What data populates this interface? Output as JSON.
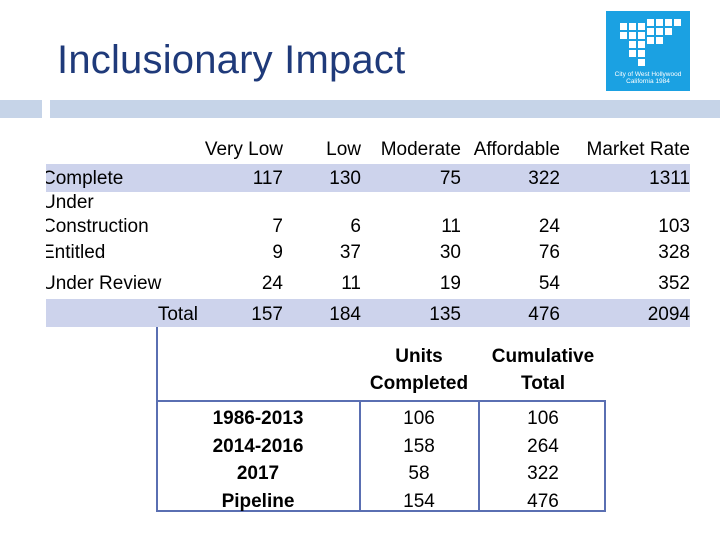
{
  "title": "Inclusionary Impact",
  "logo": {
    "line1": "City of West Hollywood",
    "line2": "California 1984"
  },
  "table1": {
    "headers": [
      "Very Low",
      "Low",
      "Moderate",
      "Affordable",
      "Market Rate"
    ],
    "rows": [
      {
        "label": "Complete",
        "values": [
          "117",
          "130",
          "75",
          "322",
          "1311"
        ]
      },
      {
        "label_line1": "Under",
        "label_line2": "Construction",
        "values": [
          "7",
          "6",
          "11",
          "24",
          "103"
        ]
      },
      {
        "label": "Entitled",
        "values": [
          "9",
          "37",
          "30",
          "76",
          "328"
        ]
      },
      {
        "label": "Under Review",
        "values": [
          "24",
          "11",
          "19",
          "54",
          "352"
        ]
      },
      {
        "label": "Total",
        "values": [
          "157",
          "184",
          "135",
          "476",
          "2094"
        ]
      }
    ]
  },
  "table2": {
    "headers": {
      "units_completed_line1": "Units",
      "units_completed_line2": "Completed",
      "cumulative_line1": "Cumulative",
      "cumulative_line2": "Total"
    },
    "periods": [
      "1986-2013",
      "2014-2016",
      "2017",
      "Pipeline"
    ],
    "units_completed": [
      "106",
      "158",
      "58",
      "154"
    ],
    "cumulative_total": [
      "106",
      "264",
      "322",
      "476"
    ]
  }
}
